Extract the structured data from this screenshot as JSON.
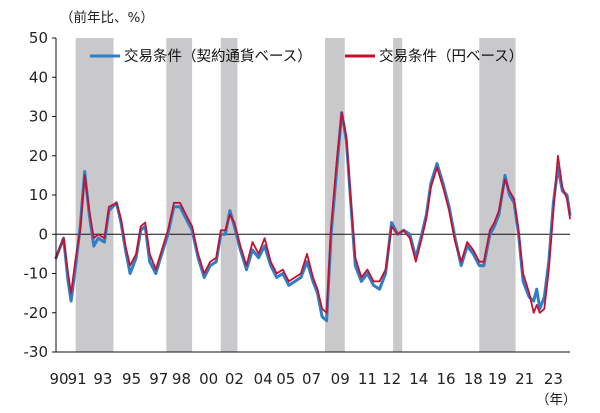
{
  "chart_data": {
    "type": "line",
    "ylabel": "（前年比、%）",
    "xunit": "（年）",
    "ylim": [
      -30,
      50
    ],
    "yticks": [
      50,
      40,
      30,
      20,
      10,
      0,
      -10,
      -20,
      -30
    ],
    "xlim": [
      1990.0,
      2024.0
    ],
    "xticks": [
      {
        "label": "90",
        "x": 1990.2
      },
      {
        "label": "91",
        "x": 1991.4
      },
      {
        "label": "93",
        "x": 1993.1
      },
      {
        "label": "95",
        "x": 1995.0
      },
      {
        "label": "97",
        "x": 1996.8
      },
      {
        "label": "98",
        "x": 1998.3
      },
      {
        "label": "00",
        "x": 2000.1
      },
      {
        "label": "02",
        "x": 2001.8
      },
      {
        "label": "04",
        "x": 2003.7
      },
      {
        "label": "05",
        "x": 2005.2
      },
      {
        "label": "07",
        "x": 2006.9
      },
      {
        "label": "09",
        "x": 2008.8
      },
      {
        "label": "11",
        "x": 2010.6
      },
      {
        "label": "12",
        "x": 2012.2
      },
      {
        "label": "14",
        "x": 2014.0
      },
      {
        "label": "16",
        "x": 2015.8
      },
      {
        "label": "18",
        "x": 2017.6
      },
      {
        "label": "19",
        "x": 2019.2
      },
      {
        "label": "21",
        "x": 2021.0
      },
      {
        "label": "23",
        "x": 2022.9
      }
    ],
    "shaded_periods": [
      [
        1991.3,
        1993.8
      ],
      [
        1997.3,
        1999.0
      ],
      [
        2000.9,
        2002.0
      ],
      [
        2007.8,
        2009.1
      ],
      [
        2012.3,
        2012.9
      ],
      [
        2018.0,
        2020.4
      ]
    ],
    "legend_position": "top",
    "series": [
      {
        "name": "交易条件（契約通貨ベース）",
        "color": "#2f7fc8",
        "points": [
          [
            1990.0,
            -6
          ],
          [
            1990.5,
            -1
          ],
          [
            1990.8,
            -12
          ],
          [
            1991.0,
            -17
          ],
          [
            1991.3,
            -8
          ],
          [
            1991.6,
            2
          ],
          [
            1991.9,
            16
          ],
          [
            1992.2,
            5
          ],
          [
            1992.5,
            -3
          ],
          [
            1992.8,
            -1
          ],
          [
            1993.2,
            -2
          ],
          [
            1993.5,
            6
          ],
          [
            1994.0,
            8
          ],
          [
            1994.3,
            3
          ],
          [
            1994.6,
            -4
          ],
          [
            1994.9,
            -10
          ],
          [
            1995.3,
            -6
          ],
          [
            1995.6,
            1
          ],
          [
            1995.9,
            2
          ],
          [
            1996.2,
            -7
          ],
          [
            1996.6,
            -10
          ],
          [
            1997.0,
            -5
          ],
          [
            1997.4,
            0
          ],
          [
            1997.8,
            7
          ],
          [
            1998.2,
            7
          ],
          [
            1998.6,
            4
          ],
          [
            1999.0,
            1
          ],
          [
            1999.4,
            -6
          ],
          [
            1999.8,
            -11
          ],
          [
            2000.2,
            -8
          ],
          [
            2000.6,
            -7
          ],
          [
            2000.9,
            0
          ],
          [
            2001.2,
            0
          ],
          [
            2001.5,
            6
          ],
          [
            2001.8,
            2
          ],
          [
            2002.2,
            -4
          ],
          [
            2002.6,
            -9
          ],
          [
            2003.0,
            -4
          ],
          [
            2003.4,
            -6
          ],
          [
            2003.8,
            -3
          ],
          [
            2004.2,
            -8
          ],
          [
            2004.6,
            -11
          ],
          [
            2005.0,
            -10
          ],
          [
            2005.4,
            -13
          ],
          [
            2005.8,
            -12
          ],
          [
            2006.2,
            -11
          ],
          [
            2006.6,
            -7
          ],
          [
            2007.0,
            -12
          ],
          [
            2007.3,
            -15
          ],
          [
            2007.6,
            -21
          ],
          [
            2007.9,
            -22
          ],
          [
            2008.2,
            0
          ],
          [
            2008.6,
            18
          ],
          [
            2008.9,
            31
          ],
          [
            2009.2,
            24
          ],
          [
            2009.5,
            8
          ],
          [
            2009.8,
            -8
          ],
          [
            2010.2,
            -12
          ],
          [
            2010.6,
            -10
          ],
          [
            2011.0,
            -13
          ],
          [
            2011.4,
            -14
          ],
          [
            2011.8,
            -10
          ],
          [
            2012.2,
            3
          ],
          [
            2012.6,
            0
          ],
          [
            2013.0,
            1
          ],
          [
            2013.4,
            0
          ],
          [
            2013.8,
            -6
          ],
          [
            2014.2,
            0
          ],
          [
            2014.5,
            5
          ],
          [
            2014.8,
            13
          ],
          [
            2015.2,
            18
          ],
          [
            2015.6,
            13
          ],
          [
            2016.0,
            7
          ],
          [
            2016.4,
            -1
          ],
          [
            2016.8,
            -8
          ],
          [
            2017.2,
            -3
          ],
          [
            2017.6,
            -5
          ],
          [
            2018.0,
            -8
          ],
          [
            2018.3,
            -8
          ],
          [
            2018.7,
            0
          ],
          [
            2019.0,
            2
          ],
          [
            2019.3,
            5
          ],
          [
            2019.7,
            15
          ],
          [
            2020.0,
            10
          ],
          [
            2020.3,
            8
          ],
          [
            2020.6,
            0
          ],
          [
            2020.9,
            -12
          ],
          [
            2021.3,
            -16
          ],
          [
            2021.6,
            -17
          ],
          [
            2021.8,
            -14
          ],
          [
            2022.0,
            -19
          ],
          [
            2022.3,
            -16
          ],
          [
            2022.6,
            -7
          ],
          [
            2022.9,
            8
          ],
          [
            2023.2,
            17
          ],
          [
            2023.5,
            11
          ],
          [
            2023.8,
            10
          ],
          [
            2024.0,
            5
          ]
        ]
      },
      {
        "name": "交易条件（円ベース）",
        "color": "#c8102e",
        "points": [
          [
            1990.0,
            -6
          ],
          [
            1990.5,
            -1
          ],
          [
            1990.8,
            -10
          ],
          [
            1991.0,
            -15
          ],
          [
            1991.3,
            -6
          ],
          [
            1991.6,
            1
          ],
          [
            1991.9,
            15
          ],
          [
            1992.2,
            6
          ],
          [
            1992.5,
            -1
          ],
          [
            1992.8,
            0
          ],
          [
            1993.2,
            -1
          ],
          [
            1993.5,
            7
          ],
          [
            1994.0,
            8
          ],
          [
            1994.3,
            4
          ],
          [
            1994.6,
            -3
          ],
          [
            1994.9,
            -8
          ],
          [
            1995.3,
            -5
          ],
          [
            1995.6,
            2
          ],
          [
            1995.9,
            3
          ],
          [
            1996.2,
            -5
          ],
          [
            1996.6,
            -9
          ],
          [
            1997.0,
            -4
          ],
          [
            1997.4,
            1
          ],
          [
            1997.8,
            8
          ],
          [
            1998.2,
            8
          ],
          [
            1998.6,
            5
          ],
          [
            1999.0,
            2
          ],
          [
            1999.4,
            -5
          ],
          [
            1999.8,
            -10
          ],
          [
            2000.2,
            -7
          ],
          [
            2000.6,
            -6
          ],
          [
            2000.9,
            1
          ],
          [
            2001.2,
            1
          ],
          [
            2001.5,
            5
          ],
          [
            2001.8,
            3
          ],
          [
            2002.2,
            -3
          ],
          [
            2002.6,
            -8
          ],
          [
            2003.0,
            -2
          ],
          [
            2003.4,
            -5
          ],
          [
            2003.8,
            -1
          ],
          [
            2004.2,
            -7
          ],
          [
            2004.6,
            -10
          ],
          [
            2005.0,
            -9
          ],
          [
            2005.4,
            -12
          ],
          [
            2005.8,
            -11
          ],
          [
            2006.2,
            -10
          ],
          [
            2006.6,
            -5
          ],
          [
            2007.0,
            -11
          ],
          [
            2007.3,
            -14
          ],
          [
            2007.6,
            -19
          ],
          [
            2007.9,
            -20
          ],
          [
            2008.2,
            2
          ],
          [
            2008.6,
            20
          ],
          [
            2008.9,
            31
          ],
          [
            2009.2,
            25
          ],
          [
            2009.5,
            9
          ],
          [
            2009.8,
            -6
          ],
          [
            2010.2,
            -11
          ],
          [
            2010.6,
            -9
          ],
          [
            2011.0,
            -12
          ],
          [
            2011.4,
            -12
          ],
          [
            2011.8,
            -9
          ],
          [
            2012.2,
            2
          ],
          [
            2012.6,
            0
          ],
          [
            2013.0,
            1
          ],
          [
            2013.4,
            -1
          ],
          [
            2013.8,
            -7
          ],
          [
            2014.2,
            -1
          ],
          [
            2014.5,
            4
          ],
          [
            2014.8,
            12
          ],
          [
            2015.2,
            17
          ],
          [
            2015.6,
            12
          ],
          [
            2016.0,
            6
          ],
          [
            2016.4,
            -2
          ],
          [
            2016.8,
            -7
          ],
          [
            2017.2,
            -2
          ],
          [
            2017.6,
            -4
          ],
          [
            2018.0,
            -7
          ],
          [
            2018.3,
            -7
          ],
          [
            2018.7,
            1
          ],
          [
            2019.0,
            3
          ],
          [
            2019.3,
            6
          ],
          [
            2019.7,
            14
          ],
          [
            2020.0,
            11
          ],
          [
            2020.3,
            9
          ],
          [
            2020.6,
            1
          ],
          [
            2020.9,
            -10
          ],
          [
            2021.3,
            -15
          ],
          [
            2021.6,
            -20
          ],
          [
            2021.8,
            -18
          ],
          [
            2022.0,
            -20
          ],
          [
            2022.3,
            -19
          ],
          [
            2022.6,
            -9
          ],
          [
            2022.9,
            6
          ],
          [
            2023.2,
            20
          ],
          [
            2023.5,
            12
          ],
          [
            2023.8,
            9
          ],
          [
            2024.0,
            4
          ]
        ]
      }
    ]
  }
}
